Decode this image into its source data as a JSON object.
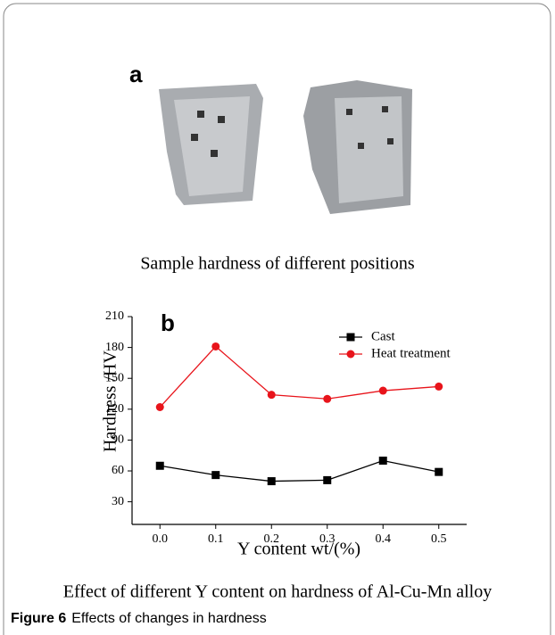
{
  "panel_a": {
    "label": "a",
    "caption": "Sample hardness of different positions"
  },
  "chart_data": {
    "type": "line",
    "label": "b",
    "caption": "Effect of different Y content on hardness of Al-Cu-Mn alloy",
    "x_label": "Y content wt/(%)",
    "y_label": "Hardness /HV",
    "x": [
      0,
      0.1,
      0.2,
      0.3,
      0.4,
      0.5
    ],
    "series": [
      {
        "name": "Cast",
        "color": "#000000",
        "marker": "square",
        "values": [
          65,
          56,
          50,
          51,
          70,
          59
        ]
      },
      {
        "name": "Heat treatment",
        "color": "#e8141b",
        "marker": "circle",
        "values": [
          122,
          181,
          134,
          130,
          138,
          142
        ]
      }
    ],
    "xlim": [
      -0.05,
      0.55
    ],
    "ylim": [
      8,
      210
    ],
    "xticks": [
      {
        "value": 0,
        "label": "0.0"
      },
      0.1,
      0.2,
      0.3,
      0.4,
      0.5
    ],
    "yticks": [
      30,
      60,
      90,
      120,
      150,
      180,
      210
    ],
    "legend": "top"
  },
  "figure_caption": {
    "label": "Figure 6",
    "text": "Effects of changes in hardness"
  }
}
